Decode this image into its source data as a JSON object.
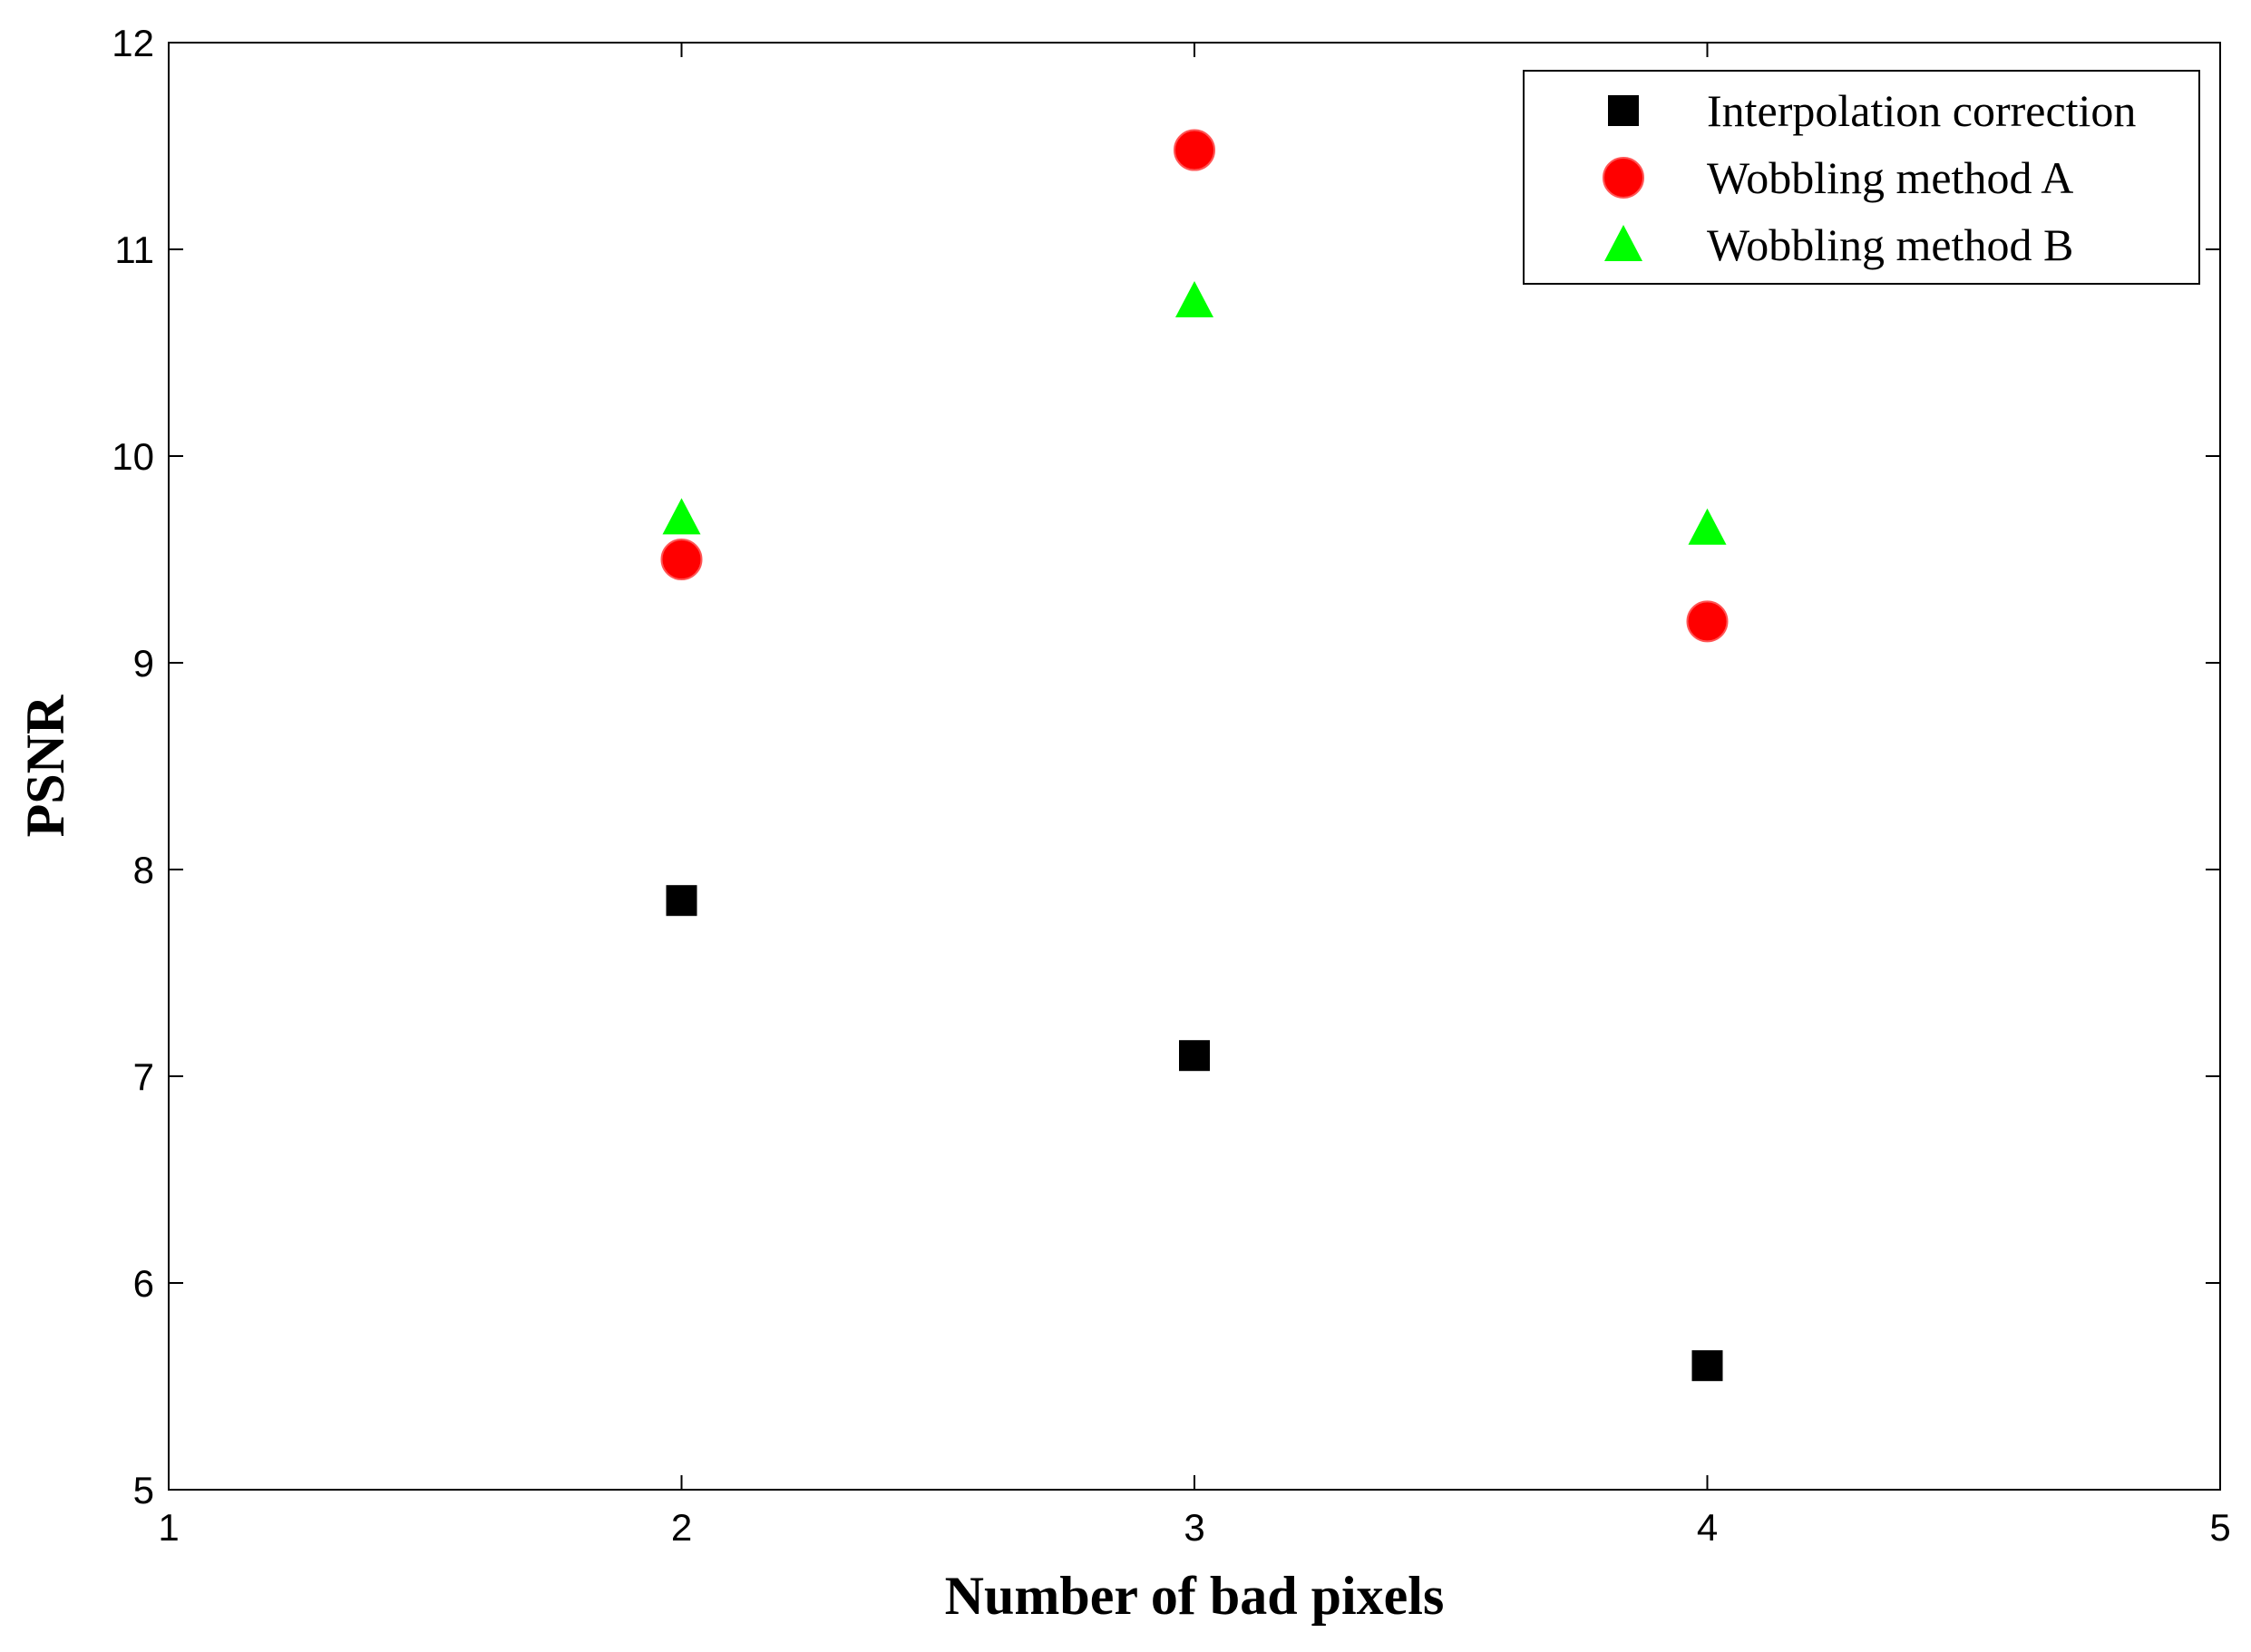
{
  "chart_data": {
    "type": "scatter",
    "title": "",
    "xlabel": "Number of bad pixels",
    "ylabel": "PSNR",
    "xlim": [
      1,
      5
    ],
    "ylim": [
      5,
      12
    ],
    "xticks": [
      "1",
      "2",
      "3",
      "4",
      "5"
    ],
    "yticks": [
      "5",
      "6",
      "7",
      "8",
      "9",
      "10",
      "11",
      "12"
    ],
    "grid": false,
    "legend_position": "top-right",
    "series": [
      {
        "name": "Interpolation correction",
        "marker": "square",
        "color": "#000000",
        "x": [
          2,
          3,
          4
        ],
        "y": [
          7.85,
          7.1,
          5.6
        ]
      },
      {
        "name": "Wobbling method A",
        "marker": "circle",
        "color": "#ff0000",
        "x": [
          2,
          3,
          4
        ],
        "y": [
          9.5,
          11.48,
          9.2
        ]
      },
      {
        "name": "Wobbling method B",
        "marker": "triangle",
        "color": "#00ff00",
        "x": [
          2,
          3,
          4
        ],
        "y": [
          9.7,
          10.75,
          9.65
        ]
      }
    ]
  }
}
